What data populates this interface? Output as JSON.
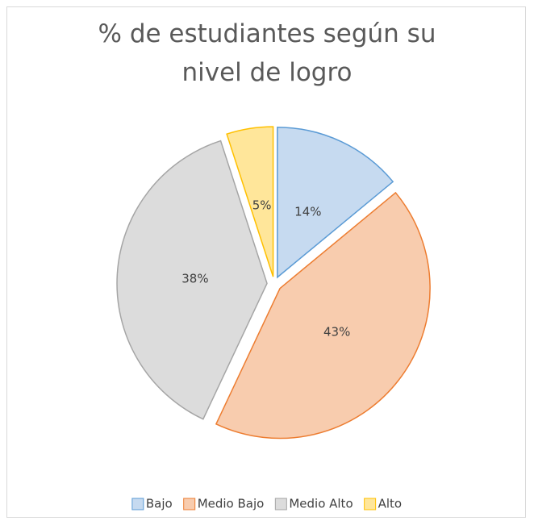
{
  "chart_data": {
    "type": "pie",
    "title": "% de estudiantes según su nivel de logro",
    "categories": [
      "Bajo",
      "Medio Bajo",
      "Medio Alto",
      "Alto"
    ],
    "values": [
      14,
      43,
      38,
      5
    ],
    "value_labels": [
      "14%",
      "43%",
      "38%",
      "5%"
    ],
    "colors": [
      "#5b9bd5",
      "#ed7d31",
      "#a5a5a5",
      "#ffc000"
    ],
    "fills": [
      "#c6daf0",
      "#f8ccae",
      "#dcdcdc",
      "#ffe69a"
    ],
    "legend": "bottom"
  }
}
